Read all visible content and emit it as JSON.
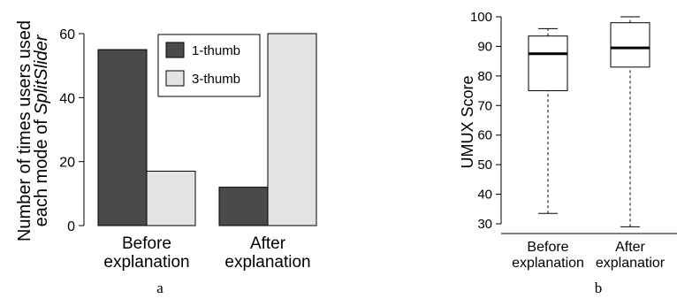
{
  "chart_data": [
    {
      "type": "bar",
      "panel_label": "a",
      "categories": [
        [
          "Before",
          "explanation"
        ],
        [
          "After",
          "explanation"
        ]
      ],
      "series": [
        {
          "name": "1-thumb",
          "values": [
            55,
            12
          ],
          "color": "#4a4a4a"
        },
        {
          "name": "3-thumb",
          "values": [
            17,
            60
          ],
          "color": "#e3e3e3"
        }
      ],
      "ylabel": [
        "Number of times users used",
        "each mode of ",
        "SplitSlider"
      ],
      "ylim": [
        0,
        60
      ],
      "yticks": [
        "0",
        "20",
        "40",
        "60"
      ],
      "legend_position": "top-center",
      "grid": false
    },
    {
      "type": "box",
      "panel_label": "b",
      "categories": [
        [
          "Before",
          "explanation"
        ],
        [
          "After",
          "explanatior"
        ]
      ],
      "boxes": [
        {
          "whisker_low": 33.5,
          "q1": 75,
          "median": 87.5,
          "q3": 93.5,
          "whisker_high": 96
        },
        {
          "whisker_low": 29,
          "q1": 83,
          "median": 89.5,
          "q3": 98,
          "whisker_high": 100
        }
      ],
      "ylabel": "UMUX Score",
      "ylim": [
        27,
        101
      ],
      "yticks": [
        "30",
        "40",
        "50",
        "60",
        "70",
        "80",
        "90",
        "100"
      ],
      "grid": false
    }
  ]
}
